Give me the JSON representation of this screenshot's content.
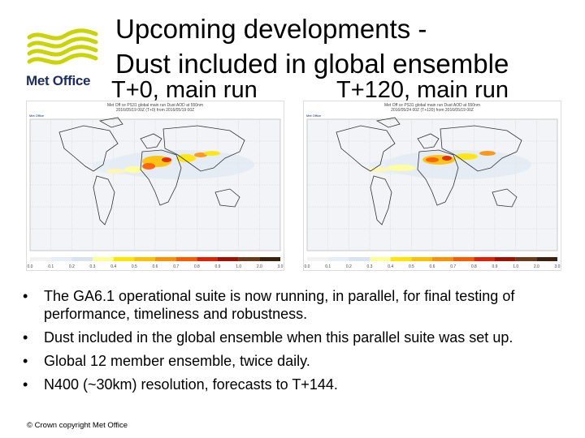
{
  "logo": {
    "text": "Met Office",
    "colors": {
      "waves": "#c9d400",
      "text": "#1b2d63"
    }
  },
  "title": {
    "line1": "Upcoming developments -",
    "line2": "Dust included in global ensemble"
  },
  "panels": [
    {
      "label": "T+0, main run",
      "map_title": "Met Off ce PS31 global main run Dust AOD at 550nm",
      "map_subtitle": "2016/05/19 00Z (T+0) from 2016/05/19 00Z"
    },
    {
      "label": "T+120, main run",
      "map_title": "Met Off ce PS31 global main run Dust AOD at 550nm",
      "map_subtitle": "2016/05/24 00Z (T+120) from 2016/05/19 00Z"
    }
  ],
  "colorbar": {
    "ticks": [
      "0.0",
      "0.1",
      "0.2",
      "0.3",
      "0.4",
      "0.5",
      "0.6",
      "0.7",
      "0.8",
      "0.9",
      "1.0",
      "2.0",
      "3.0"
    ],
    "colors": [
      "#f2f2f2",
      "#e8eef6",
      "#d8e4f0",
      "#ffff99",
      "#ffe600",
      "#ffc000",
      "#ff9000",
      "#ff5a00",
      "#e02000",
      "#a01000",
      "#6b3a1a",
      "#3d200d"
    ]
  },
  "bullets": [
    "The GA6.1 operational suite is now running, in parallel, for final testing of performance, timeliness and robustness.",
    "Dust included in the global ensemble when this parallel suite was set up.",
    "Global 12 member ensemble, twice daily.",
    "N400 (~30km) resolution, forecasts to T+144."
  ],
  "bullet_glyph": "•",
  "footer": "© Crown copyright   Met Office"
}
